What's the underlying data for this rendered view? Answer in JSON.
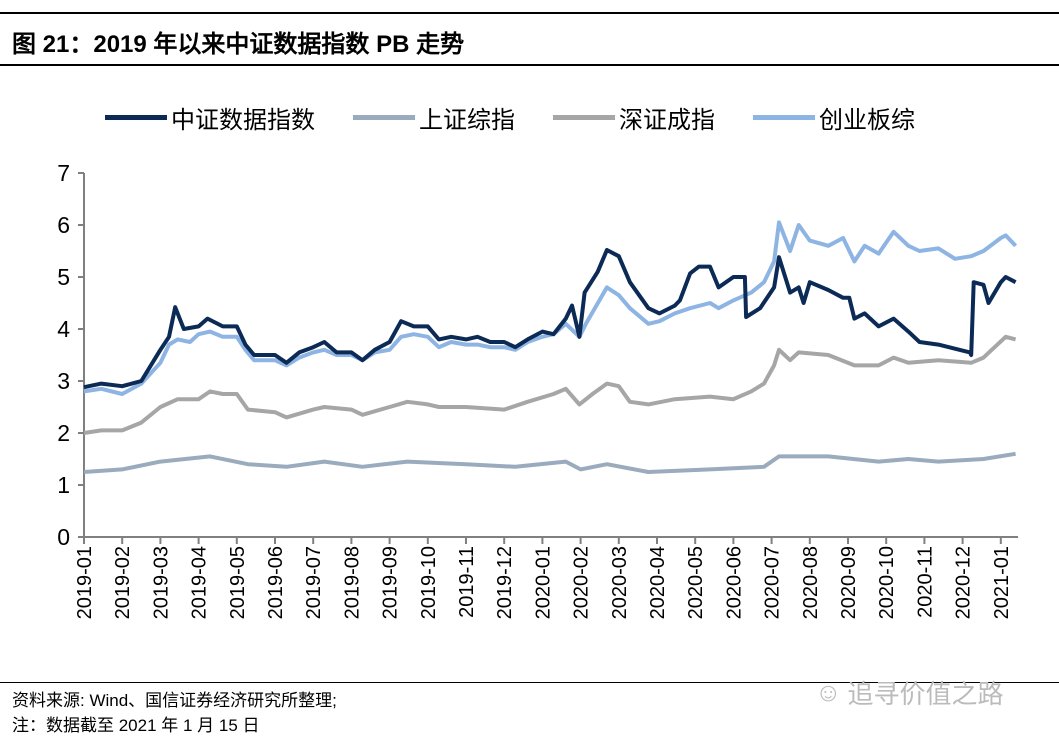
{
  "title": "图 21：2019 年以来中证数据指数 PB 走势",
  "footer": {
    "source": "资料来源: Wind、国信证券经济研究所整理;",
    "note": "注：数据截至 2021 年 1 月 15 日"
  },
  "watermark": "追寻价值之路",
  "chart_data": {
    "type": "line",
    "title": "",
    "xlabel": "",
    "ylabel": "",
    "ylim": [
      0,
      7
    ],
    "yticks": [
      "0",
      "1",
      "2",
      "3",
      "4",
      "5",
      "6",
      "7"
    ],
    "xticks": [
      "2019-01",
      "2019-02",
      "2019-03",
      "2019-04",
      "2019-05",
      "2019-06",
      "2019-07",
      "2019-08",
      "2019-09",
      "2019-10",
      "2019-11",
      "2019-12",
      "2020-01",
      "2020-02",
      "2020-03",
      "2020-04",
      "2020-05",
      "2020-06",
      "2020-07",
      "2020-08",
      "2020-09",
      "2020-10",
      "2020-11",
      "2020-12",
      "2021-01"
    ],
    "grid": false,
    "legend": "top",
    "series": [
      {
        "name": "中证数据指数",
        "color": "#0b2a55",
        "points": [
          [
            "2019-01-01",
            2.88
          ],
          [
            "2019-01-15",
            2.95
          ],
          [
            "2019-02-01",
            2.9
          ],
          [
            "2019-02-15",
            3.0
          ],
          [
            "2019-03-01",
            3.6
          ],
          [
            "2019-03-08",
            3.85
          ],
          [
            "2019-03-13",
            4.42
          ],
          [
            "2019-03-20",
            4.0
          ],
          [
            "2019-04-01",
            4.05
          ],
          [
            "2019-04-08",
            4.2
          ],
          [
            "2019-04-20",
            4.05
          ],
          [
            "2019-05-01",
            4.05
          ],
          [
            "2019-05-08",
            3.7
          ],
          [
            "2019-05-15",
            3.5
          ],
          [
            "2019-06-01",
            3.5
          ],
          [
            "2019-06-10",
            3.35
          ],
          [
            "2019-06-20",
            3.55
          ],
          [
            "2019-07-01",
            3.65
          ],
          [
            "2019-07-10",
            3.75
          ],
          [
            "2019-07-20",
            3.55
          ],
          [
            "2019-08-01",
            3.55
          ],
          [
            "2019-08-10",
            3.4
          ],
          [
            "2019-08-20",
            3.6
          ],
          [
            "2019-09-01",
            3.75
          ],
          [
            "2019-09-10",
            4.15
          ],
          [
            "2019-09-20",
            4.05
          ],
          [
            "2019-10-01",
            4.05
          ],
          [
            "2019-10-10",
            3.8
          ],
          [
            "2019-10-20",
            3.85
          ],
          [
            "2019-11-01",
            3.8
          ],
          [
            "2019-11-10",
            3.85
          ],
          [
            "2019-11-20",
            3.75
          ],
          [
            "2019-12-01",
            3.75
          ],
          [
            "2019-12-10",
            3.65
          ],
          [
            "2019-12-20",
            3.8
          ],
          [
            "2020-01-01",
            3.95
          ],
          [
            "2020-01-10",
            3.9
          ],
          [
            "2020-01-20",
            4.2
          ],
          [
            "2020-01-25",
            4.45
          ],
          [
            "2020-01-31",
            3.85
          ],
          [
            "2020-02-04",
            4.7
          ],
          [
            "2020-02-14",
            5.1
          ],
          [
            "2020-02-21",
            5.52
          ],
          [
            "2020-03-01",
            5.4
          ],
          [
            "2020-03-10",
            4.9
          ],
          [
            "2020-03-25",
            4.4
          ],
          [
            "2020-04-03",
            4.3
          ],
          [
            "2020-04-15",
            4.45
          ],
          [
            "2020-04-19",
            4.55
          ],
          [
            "2020-04-27",
            5.07
          ],
          [
            "2020-05-04",
            5.2
          ],
          [
            "2020-05-13",
            5.2
          ],
          [
            "2020-05-20",
            4.8
          ],
          [
            "2020-06-01",
            5.0
          ],
          [
            "2020-06-10",
            5.0
          ],
          [
            "2020-06-11",
            4.23
          ],
          [
            "2020-06-22",
            4.4
          ],
          [
            "2020-07-03",
            4.8
          ],
          [
            "2020-07-07",
            5.38
          ],
          [
            "2020-07-16",
            4.7
          ],
          [
            "2020-07-23",
            4.8
          ],
          [
            "2020-07-27",
            4.5
          ],
          [
            "2020-08-01",
            4.9
          ],
          [
            "2020-08-16",
            4.75
          ],
          [
            "2020-08-28",
            4.6
          ],
          [
            "2020-09-02",
            4.6
          ],
          [
            "2020-09-06",
            4.2
          ],
          [
            "2020-09-14",
            4.3
          ],
          [
            "2020-09-25",
            4.05
          ],
          [
            "2020-10-07",
            4.2
          ],
          [
            "2020-10-19",
            3.95
          ],
          [
            "2020-10-28",
            3.75
          ],
          [
            "2020-11-12",
            3.7
          ],
          [
            "2020-12-07",
            3.55
          ],
          [
            "2020-12-08",
            3.5
          ],
          [
            "2020-12-10",
            4.9
          ],
          [
            "2020-12-18",
            4.85
          ],
          [
            "2020-12-22",
            4.5
          ],
          [
            "2021-01-01",
            4.9
          ],
          [
            "2021-01-05",
            5.0
          ],
          [
            "2021-01-13",
            4.9
          ]
        ]
      },
      {
        "name": "上证综指",
        "color": "#9aabbd",
        "points": [
          [
            "2019-01-01",
            1.25
          ],
          [
            "2019-02-01",
            1.3
          ],
          [
            "2019-03-01",
            1.45
          ],
          [
            "2019-04-10",
            1.55
          ],
          [
            "2019-05-10",
            1.4
          ],
          [
            "2019-06-10",
            1.35
          ],
          [
            "2019-07-10",
            1.45
          ],
          [
            "2019-08-10",
            1.35
          ],
          [
            "2019-09-15",
            1.45
          ],
          [
            "2019-11-01",
            1.4
          ],
          [
            "2019-12-10",
            1.35
          ],
          [
            "2020-01-20",
            1.45
          ],
          [
            "2020-02-01",
            1.3
          ],
          [
            "2020-02-21",
            1.4
          ],
          [
            "2020-03-25",
            1.25
          ],
          [
            "2020-05-13",
            1.3
          ],
          [
            "2020-06-25",
            1.35
          ],
          [
            "2020-07-07",
            1.55
          ],
          [
            "2020-08-16",
            1.55
          ],
          [
            "2020-09-25",
            1.45
          ],
          [
            "2020-10-19",
            1.5
          ],
          [
            "2020-11-12",
            1.45
          ],
          [
            "2020-12-18",
            1.5
          ],
          [
            "2021-01-13",
            1.6
          ]
        ]
      },
      {
        "name": "深证成指",
        "color": "#a6a6a6",
        "points": [
          [
            "2019-01-01",
            2.0
          ],
          [
            "2019-01-15",
            2.05
          ],
          [
            "2019-02-01",
            2.05
          ],
          [
            "2019-02-15",
            2.2
          ],
          [
            "2019-03-01",
            2.5
          ],
          [
            "2019-03-15",
            2.65
          ],
          [
            "2019-04-01",
            2.65
          ],
          [
            "2019-04-10",
            2.8
          ],
          [
            "2019-04-20",
            2.75
          ],
          [
            "2019-05-01",
            2.75
          ],
          [
            "2019-05-10",
            2.45
          ],
          [
            "2019-06-01",
            2.4
          ],
          [
            "2019-06-10",
            2.3
          ],
          [
            "2019-07-01",
            2.45
          ],
          [
            "2019-07-10",
            2.5
          ],
          [
            "2019-08-01",
            2.45
          ],
          [
            "2019-08-10",
            2.35
          ],
          [
            "2019-09-01",
            2.5
          ],
          [
            "2019-09-15",
            2.6
          ],
          [
            "2019-10-01",
            2.55
          ],
          [
            "2019-10-10",
            2.5
          ],
          [
            "2019-11-01",
            2.5
          ],
          [
            "2019-12-01",
            2.45
          ],
          [
            "2019-12-20",
            2.6
          ],
          [
            "2020-01-10",
            2.75
          ],
          [
            "2020-01-20",
            2.85
          ],
          [
            "2020-01-31",
            2.55
          ],
          [
            "2020-02-10",
            2.75
          ],
          [
            "2020-02-21",
            2.95
          ],
          [
            "2020-03-01",
            2.9
          ],
          [
            "2020-03-10",
            2.6
          ],
          [
            "2020-03-25",
            2.55
          ],
          [
            "2020-04-15",
            2.65
          ],
          [
            "2020-05-13",
            2.7
          ],
          [
            "2020-06-01",
            2.65
          ],
          [
            "2020-06-15",
            2.8
          ],
          [
            "2020-06-25",
            2.95
          ],
          [
            "2020-07-03",
            3.3
          ],
          [
            "2020-07-07",
            3.6
          ],
          [
            "2020-07-16",
            3.4
          ],
          [
            "2020-07-23",
            3.55
          ],
          [
            "2020-08-16",
            3.5
          ],
          [
            "2020-09-06",
            3.3
          ],
          [
            "2020-09-25",
            3.3
          ],
          [
            "2020-10-07",
            3.45
          ],
          [
            "2020-10-19",
            3.35
          ],
          [
            "2020-11-12",
            3.4
          ],
          [
            "2020-12-08",
            3.35
          ],
          [
            "2020-12-18",
            3.45
          ],
          [
            "2021-01-05",
            3.85
          ],
          [
            "2021-01-13",
            3.8
          ]
        ]
      },
      {
        "name": "创业板综",
        "color": "#8db4e2",
        "points": [
          [
            "2019-01-01",
            2.8
          ],
          [
            "2019-01-15",
            2.85
          ],
          [
            "2019-02-01",
            2.75
          ],
          [
            "2019-02-15",
            2.95
          ],
          [
            "2019-03-01",
            3.35
          ],
          [
            "2019-03-08",
            3.7
          ],
          [
            "2019-03-15",
            3.8
          ],
          [
            "2019-03-25",
            3.75
          ],
          [
            "2019-04-01",
            3.9
          ],
          [
            "2019-04-10",
            3.95
          ],
          [
            "2019-04-20",
            3.85
          ],
          [
            "2019-05-01",
            3.85
          ],
          [
            "2019-05-08",
            3.6
          ],
          [
            "2019-05-15",
            3.4
          ],
          [
            "2019-06-01",
            3.4
          ],
          [
            "2019-06-10",
            3.3
          ],
          [
            "2019-06-20",
            3.45
          ],
          [
            "2019-07-01",
            3.55
          ],
          [
            "2019-07-10",
            3.6
          ],
          [
            "2019-07-20",
            3.5
          ],
          [
            "2019-08-01",
            3.5
          ],
          [
            "2019-08-10",
            3.4
          ],
          [
            "2019-08-20",
            3.55
          ],
          [
            "2019-09-01",
            3.6
          ],
          [
            "2019-09-10",
            3.85
          ],
          [
            "2019-09-20",
            3.9
          ],
          [
            "2019-10-01",
            3.85
          ],
          [
            "2019-10-10",
            3.65
          ],
          [
            "2019-10-20",
            3.75
          ],
          [
            "2019-11-01",
            3.7
          ],
          [
            "2019-11-10",
            3.7
          ],
          [
            "2019-11-20",
            3.65
          ],
          [
            "2019-12-01",
            3.65
          ],
          [
            "2019-12-10",
            3.6
          ],
          [
            "2019-12-20",
            3.75
          ],
          [
            "2020-01-01",
            3.85
          ],
          [
            "2020-01-10",
            3.9
          ],
          [
            "2020-01-20",
            4.1
          ],
          [
            "2020-01-31",
            3.85
          ],
          [
            "2020-02-05",
            4.1
          ],
          [
            "2020-02-21",
            4.8
          ],
          [
            "2020-03-01",
            4.65
          ],
          [
            "2020-03-10",
            4.4
          ],
          [
            "2020-03-25",
            4.1
          ],
          [
            "2020-04-03",
            4.15
          ],
          [
            "2020-04-15",
            4.3
          ],
          [
            "2020-04-27",
            4.4
          ],
          [
            "2020-05-13",
            4.5
          ],
          [
            "2020-05-20",
            4.4
          ],
          [
            "2020-06-01",
            4.55
          ],
          [
            "2020-06-15",
            4.7
          ],
          [
            "2020-06-25",
            4.9
          ],
          [
            "2020-07-03",
            5.3
          ],
          [
            "2020-07-07",
            6.05
          ],
          [
            "2020-07-16",
            5.5
          ],
          [
            "2020-07-23",
            6.0
          ],
          [
            "2020-08-01",
            5.7
          ],
          [
            "2020-08-16",
            5.6
          ],
          [
            "2020-08-28",
            5.75
          ],
          [
            "2020-09-06",
            5.3
          ],
          [
            "2020-09-14",
            5.6
          ],
          [
            "2020-09-25",
            5.45
          ],
          [
            "2020-10-07",
            5.87
          ],
          [
            "2020-10-19",
            5.6
          ],
          [
            "2020-10-28",
            5.5
          ],
          [
            "2020-11-12",
            5.55
          ],
          [
            "2020-11-25",
            5.35
          ],
          [
            "2020-12-08",
            5.4
          ],
          [
            "2020-12-18",
            5.5
          ],
          [
            "2021-01-01",
            5.75
          ],
          [
            "2021-01-05",
            5.8
          ],
          [
            "2021-01-13",
            5.6
          ]
        ]
      }
    ]
  }
}
